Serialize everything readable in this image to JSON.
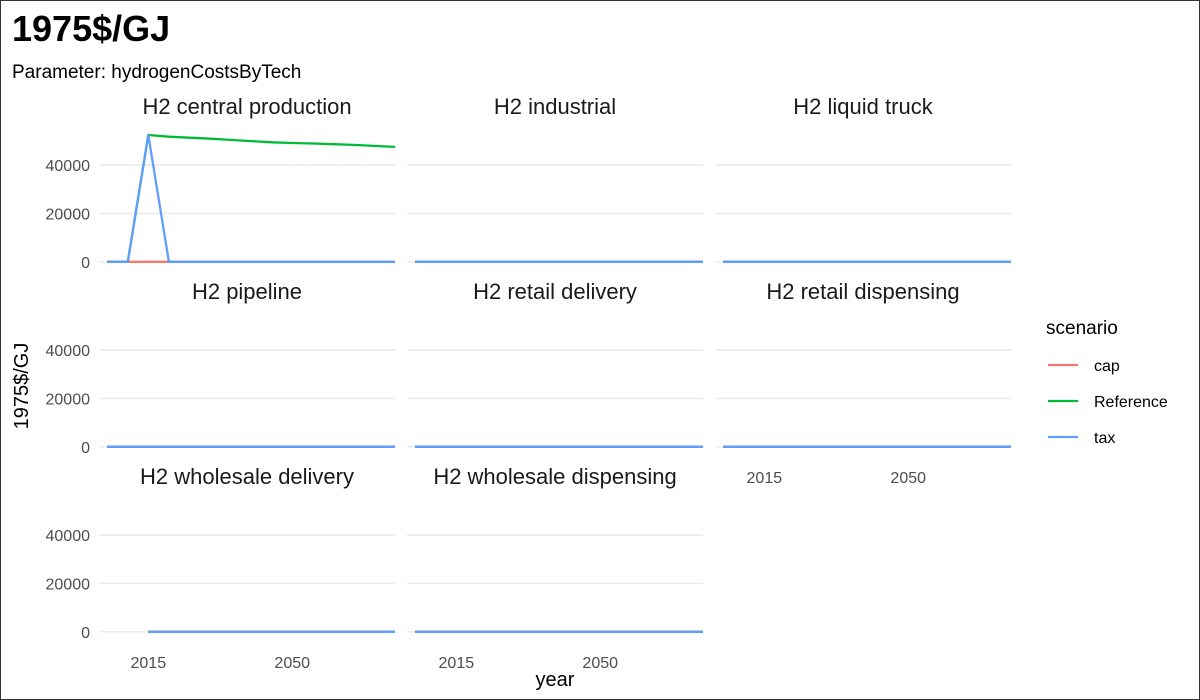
{
  "chart_data": {
    "type": "line",
    "title": "1975$/GJ",
    "subtitle": "Parameter: hydrogenCostsByTech",
    "xlabel": "year",
    "ylabel": "1975$/GJ",
    "x_ticks": [
      2015,
      2050
    ],
    "y_ticks": [
      0,
      20000,
      40000
    ],
    "ylim": [
      -3000,
      55000
    ],
    "xlim": [
      2003,
      2075
    ],
    "grid": true,
    "legend": {
      "title": "scenario",
      "position": "right"
    },
    "series_styles": [
      {
        "name": "cap",
        "color": "#F8766D"
      },
      {
        "name": "Reference",
        "color": "#00BA38"
      },
      {
        "name": "tax",
        "color": "#619CFF"
      }
    ],
    "panels": [
      {
        "title": "H2 central production",
        "series": [
          {
            "name": "cap",
            "x": [
              2005,
              2010,
              2015,
              2020,
              2025,
              2030,
              2035,
              2040,
              2045,
              2050,
              2055,
              2060,
              2065,
              2070,
              2075
            ],
            "y": [
              0,
              0,
              0,
              0,
              0,
              0,
              0,
              0,
              0,
              0,
              0,
              0,
              0,
              0,
              0
            ]
          },
          {
            "name": "Reference",
            "x": [
              2005,
              2010,
              2015,
              2020,
              2025,
              2030,
              2035,
              2040,
              2045,
              2050,
              2055,
              2060,
              2065,
              2070,
              2075
            ],
            "y": [
              0,
              0,
              52500,
              51800,
              51400,
              51000,
              50500,
              50000,
              49500,
              49200,
              49000,
              48700,
              48400,
              48000,
              47600
            ]
          },
          {
            "name": "tax",
            "x": [
              2005,
              2010,
              2015,
              2020,
              2025,
              2030,
              2035,
              2040,
              2045,
              2050,
              2055,
              2060,
              2065,
              2070,
              2075
            ],
            "y": [
              0,
              0,
              52500,
              0,
              0,
              0,
              0,
              0,
              0,
              0,
              0,
              0,
              0,
              0,
              0
            ]
          }
        ]
      },
      {
        "title": "H2 industrial",
        "series": [
          {
            "name": "cap",
            "x": [
              2005,
              2075
            ],
            "y": [
              0,
              0
            ]
          },
          {
            "name": "Reference",
            "x": [
              2005,
              2075
            ],
            "y": [
              0,
              0
            ]
          },
          {
            "name": "tax",
            "x": [
              2005,
              2075
            ],
            "y": [
              0,
              0
            ]
          }
        ]
      },
      {
        "title": "H2 liquid truck",
        "series": [
          {
            "name": "cap",
            "x": [
              2005,
              2075
            ],
            "y": [
              0,
              0
            ]
          },
          {
            "name": "Reference",
            "x": [
              2005,
              2075
            ],
            "y": [
              0,
              0
            ]
          },
          {
            "name": "tax",
            "x": [
              2005,
              2075
            ],
            "y": [
              0,
              0
            ]
          }
        ]
      },
      {
        "title": "H2 pipeline",
        "series": [
          {
            "name": "cap",
            "x": [
              2005,
              2075
            ],
            "y": [
              0,
              0
            ]
          },
          {
            "name": "Reference",
            "x": [
              2005,
              2075
            ],
            "y": [
              0,
              0
            ]
          },
          {
            "name": "tax",
            "x": [
              2005,
              2075
            ],
            "y": [
              0,
              0
            ]
          }
        ]
      },
      {
        "title": "H2 retail delivery",
        "series": [
          {
            "name": "cap",
            "x": [
              2005,
              2075
            ],
            "y": [
              0,
              0
            ]
          },
          {
            "name": "Reference",
            "x": [
              2005,
              2075
            ],
            "y": [
              0,
              0
            ]
          },
          {
            "name": "tax",
            "x": [
              2005,
              2075
            ],
            "y": [
              0,
              0
            ]
          }
        ]
      },
      {
        "title": "H2 retail dispensing",
        "series": [
          {
            "name": "cap",
            "x": [
              2005,
              2075
            ],
            "y": [
              0,
              0
            ]
          },
          {
            "name": "Reference",
            "x": [
              2005,
              2075
            ],
            "y": [
              0,
              0
            ]
          },
          {
            "name": "tax",
            "x": [
              2005,
              2075
            ],
            "y": [
              0,
              0
            ]
          }
        ]
      },
      {
        "title": "H2 wholesale delivery",
        "series": [
          {
            "name": "cap",
            "x": [
              2015,
              2075
            ],
            "y": [
              0,
              0
            ]
          },
          {
            "name": "Reference",
            "x": [
              2015,
              2075
            ],
            "y": [
              0,
              0
            ]
          },
          {
            "name": "tax",
            "x": [
              2015,
              2075
            ],
            "y": [
              0,
              0
            ]
          }
        ]
      },
      {
        "title": "H2 wholesale dispensing",
        "series": [
          {
            "name": "cap",
            "x": [
              2005,
              2075
            ],
            "y": [
              0,
              0
            ]
          },
          {
            "name": "Reference",
            "x": [
              2005,
              2075
            ],
            "y": [
              0,
              0
            ]
          },
          {
            "name": "tax",
            "x": [
              2005,
              2075
            ],
            "y": [
              0,
              0
            ]
          }
        ]
      }
    ]
  }
}
